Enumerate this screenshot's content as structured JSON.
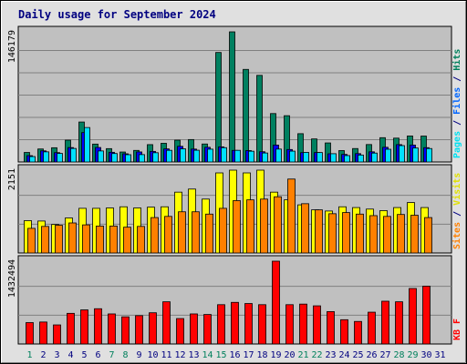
{
  "chart_data": {
    "type": "bar",
    "title": "Daily usage for September 2024",
    "categories": [
      "1",
      "2",
      "3",
      "4",
      "5",
      "6",
      "7",
      "8",
      "9",
      "10",
      "11",
      "12",
      "13",
      "14",
      "15",
      "16",
      "17",
      "18",
      "19",
      "20",
      "21",
      "22",
      "23",
      "24",
      "25",
      "26",
      "27",
      "28",
      "29",
      "30",
      "31"
    ],
    "weekend_days": [
      1,
      7,
      8,
      14,
      15,
      21,
      22,
      28,
      29
    ],
    "colors": {
      "hits": "#006600",
      "files": "#0000ff",
      "pages": "#00ffff",
      "visits": "#ffff00",
      "sites": "#ff8000",
      "kbytes": "#ff0000",
      "weekend_day_label": "#00805c",
      "weekday_label": "#000080",
      "title": "#000080",
      "plot_bg": "#c0c0c0",
      "frame_bg": "#e0e0e0"
    },
    "panels": [
      {
        "id": "hits_files_pages",
        "ymax": 146179,
        "ymax_label": "146179",
        "legend": [
          {
            "text": "Pages",
            "color": "#00e0f0"
          },
          {
            "text": " / ",
            "color": "#000080"
          },
          {
            "text": "Files",
            "color": "#0066ff"
          },
          {
            "text": " / ",
            "color": "#000080"
          },
          {
            "text": "Hits",
            "color": "#00805c"
          }
        ],
        "series": [
          {
            "name": "Hits",
            "color": "#008060",
            "values": [
              10700,
              14600,
              16000,
              24500,
              44900,
              20100,
              15000,
              11200,
              13000,
              19500,
              21000,
              24500,
              25200,
              20200,
              123000,
              146179,
              104000,
              97300,
              54400,
              52000,
              31800,
              25900,
              21400,
              12800,
              15100,
              19600,
              27300,
              26800,
              29200,
              29100,
              0
            ]
          },
          {
            "name": "Files",
            "color": "#0000ff",
            "values": [
              7100,
              12500,
              10500,
              16200,
              33000,
              16300,
              10900,
              9200,
              11300,
              11900,
              14700,
              17600,
              14500,
              16500,
              17000,
              13000,
              12800,
              11500,
              19000,
              14000,
              10500,
              10600,
              9200,
              8500,
              9400,
              11400,
              16500,
              19500,
              19000,
              16100,
              0
            ]
          },
          {
            "name": "Pages",
            "color": "#00e0ff",
            "values": [
              6100,
              11400,
              9600,
              15200,
              38700,
              12400,
              9500,
              8200,
              8300,
              10400,
              13100,
              14800,
              13200,
              14400,
              16100,
              13100,
              12100,
              10100,
              14500,
              12200,
              10800,
              10600,
              9300,
              7200,
              7800,
              10000,
              14300,
              18400,
              15700,
              15100,
              0
            ]
          }
        ]
      },
      {
        "id": "visits_sites",
        "ymax": 2151,
        "ymax_label": "2151",
        "legend": [
          {
            "text": "Sites",
            "color": "#ff8000"
          },
          {
            "text": " / ",
            "color": "#000080"
          },
          {
            "text": "Visits",
            "color": "#e0e000"
          }
        ],
        "series": [
          {
            "name": "Visits",
            "color": "#ffff00",
            "values": [
              840,
              830,
              740,
              910,
              1160,
              1160,
              1170,
              1200,
              1170,
              1190,
              1200,
              1580,
              1660,
              1400,
              2080,
              2151,
              2080,
              2151,
              1580,
              1380,
              1250,
              1120,
              1090,
              1200,
              1180,
              1140,
              1100,
              1180,
              1310,
              1180,
              0
            ]
          },
          {
            "name": "Sites",
            "color": "#ff8000",
            "values": [
              640,
              690,
              720,
              780,
              730,
              700,
              700,
              670,
              690,
              920,
              950,
              1070,
              1070,
              1010,
              1160,
              1360,
              1380,
              1400,
              1460,
              1920,
              1280,
              1120,
              1020,
              1050,
              1010,
              970,
              950,
              1000,
              980,
              920,
              0
            ]
          }
        ]
      },
      {
        "id": "kbytes",
        "ymax": 1432494,
        "ymax_label": "1432494",
        "legend": [
          {
            "text": "KB F",
            "color": "#ff0000"
          }
        ],
        "series": [
          {
            "name": "KB F",
            "color": "#ff0000",
            "values": [
              370000,
              380000,
              330000,
              530000,
              590000,
              610000,
              520000,
              470000,
              490000,
              540000,
              730000,
              440000,
              520000,
              510000,
              680000,
              720000,
              700000,
              680000,
              1432494,
              680000,
              690000,
              660000,
              560000,
              420000,
              390000,
              550000,
              740000,
              730000,
              960000,
              1000000,
              0
            ]
          }
        ]
      }
    ]
  }
}
